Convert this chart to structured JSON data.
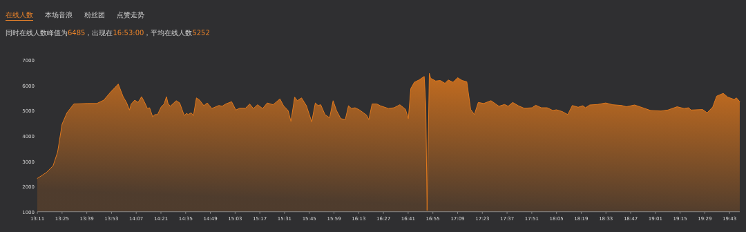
{
  "chart_data": {
    "type": "area",
    "annotations": [
      "在线人数",
      "本场音浪",
      "粉丝团",
      "点赞走势"
    ],
    "subtitle": "同时在线人数峰值为6485，出现在16:53:00，平均在线人数5252",
    "xlim": [
      13.183,
      19.8133
    ],
    "ylim": [
      1000,
      7000
    ],
    "yticks": [
      1000,
      2000,
      3000,
      4000,
      5000,
      6000,
      7000
    ],
    "xticks": [
      {
        "value": 13.1833,
        "label": "13:11"
      },
      {
        "value": 13.4167,
        "label": "13:25"
      },
      {
        "value": 13.65,
        "label": "13:39"
      },
      {
        "value": 13.8833,
        "label": "13:53"
      },
      {
        "value": 14.1167,
        "label": "14:07"
      },
      {
        "value": 14.35,
        "label": "14:21"
      },
      {
        "value": 14.5833,
        "label": "14:35"
      },
      {
        "value": 14.8167,
        "label": "14:49"
      },
      {
        "value": 15.05,
        "label": "15:03"
      },
      {
        "value": 15.2833,
        "label": "15:17"
      },
      {
        "value": 15.5167,
        "label": "15:31"
      },
      {
        "value": 15.75,
        "label": "15:45"
      },
      {
        "value": 15.9833,
        "label": "15:59"
      },
      {
        "value": 16.2167,
        "label": "16:13"
      },
      {
        "value": 16.45,
        "label": "16:27"
      },
      {
        "value": 16.6833,
        "label": "16:41"
      },
      {
        "value": 16.9167,
        "label": "16:55"
      },
      {
        "value": 17.15,
        "label": "17:09"
      },
      {
        "value": 17.3833,
        "label": "17:23"
      },
      {
        "value": 17.6167,
        "label": "17:37"
      },
      {
        "value": 17.85,
        "label": "17:51"
      },
      {
        "value": 18.0833,
        "label": "18:05"
      },
      {
        "value": 18.3167,
        "label": "18:19"
      },
      {
        "value": 18.55,
        "label": "18:33"
      },
      {
        "value": 18.7833,
        "label": "18:47"
      },
      {
        "value": 19.0167,
        "label": "19:01"
      },
      {
        "value": 19.25,
        "label": "19:15"
      },
      {
        "value": 19.4833,
        "label": "19:29"
      },
      {
        "value": 19.7167,
        "label": "19:43"
      }
    ],
    "x": [
      13.183,
      13.267,
      13.332,
      13.375,
      13.417,
      13.463,
      13.528,
      13.658,
      13.745,
      13.81,
      13.875,
      13.947,
      13.972,
      13.993,
      14.025,
      14.053,
      14.07,
      14.102,
      14.135,
      14.167,
      14.193,
      14.222,
      14.243,
      14.272,
      14.293,
      14.318,
      14.352,
      14.38,
      14.402,
      14.417,
      14.438,
      14.467,
      14.493,
      14.527,
      14.57,
      14.592,
      14.607,
      14.635,
      14.657,
      14.685,
      14.715,
      14.755,
      14.787,
      14.83,
      14.897,
      14.928,
      14.962,
      15.017,
      15.057,
      15.092,
      15.147,
      15.187,
      15.223,
      15.262,
      15.31,
      15.353,
      15.408,
      15.473,
      15.507,
      15.55,
      15.577,
      15.612,
      15.637,
      15.677,
      15.723,
      15.773,
      15.807,
      15.832,
      15.858,
      15.898,
      15.942,
      15.975,
      16.007,
      16.047,
      16.09,
      16.12,
      16.148,
      16.182,
      16.225,
      16.29,
      16.312,
      16.343,
      16.387,
      16.42,
      16.497,
      16.55,
      16.605,
      16.658,
      16.685,
      16.708,
      16.742,
      16.785,
      16.835,
      16.85,
      16.862,
      16.883,
      16.895,
      16.943,
      16.987,
      17.03,
      17.062,
      17.107,
      17.15,
      17.193,
      17.237,
      17.273,
      17.308,
      17.345,
      17.397,
      17.465,
      17.54,
      17.593,
      17.627,
      17.67,
      17.723,
      17.778,
      17.853,
      17.887,
      17.94,
      17.995,
      18.05,
      18.082,
      18.137,
      18.19,
      18.233,
      18.288,
      18.332,
      18.357,
      18.397,
      18.472,
      18.548,
      18.613,
      18.7,
      18.743,
      18.82,
      18.918,
      18.972,
      19.07,
      19.135,
      19.222,
      19.287,
      19.33,
      19.353,
      19.462,
      19.505,
      19.558,
      19.595,
      19.657,
      19.7,
      19.76,
      19.782,
      19.813
    ],
    "series": [
      {
        "color": "#e0781c",
        "values": [
          2320,
          2550,
          2820,
          3370,
          4470,
          4920,
          5270,
          5290,
          5290,
          5420,
          5740,
          6060,
          5790,
          5560,
          5330,
          5030,
          5270,
          5420,
          5330,
          5560,
          5360,
          5090,
          5120,
          4760,
          4850,
          4850,
          5150,
          5270,
          5560,
          5290,
          5180,
          5290,
          5400,
          5310,
          4810,
          4900,
          4850,
          4920,
          4810,
          5510,
          5420,
          5200,
          5310,
          5090,
          5210,
          5180,
          5270,
          5360,
          5030,
          5100,
          5100,
          5270,
          5090,
          5240,
          5090,
          5310,
          5240,
          5470,
          5200,
          5010,
          4580,
          5540,
          5400,
          5510,
          5200,
          4560,
          5310,
          5210,
          5240,
          4850,
          4720,
          5400,
          5010,
          4690,
          4650,
          5200,
          5090,
          5120,
          5030,
          4830,
          4650,
          5270,
          5270,
          5200,
          5090,
          5120,
          5240,
          5060,
          4690,
          5880,
          6130,
          6220,
          6360,
          5200,
          1050,
          6485,
          6290,
          6180,
          6200,
          6090,
          6220,
          6130,
          6310,
          6200,
          6150,
          5060,
          4850,
          5330,
          5290,
          5400,
          5180,
          5250,
          5180,
          5330,
          5200,
          5100,
          5120,
          5220,
          5120,
          5120,
          5010,
          5040,
          4970,
          4850,
          5210,
          5140,
          5200,
          5120,
          5230,
          5250,
          5310,
          5240,
          5210,
          5160,
          5230,
          5090,
          5010,
          4990,
          5030,
          5160,
          5090,
          5120,
          5030,
          5050,
          4920,
          5150,
          5580,
          5690,
          5540,
          5450,
          5510,
          5360
        ]
      }
    ]
  }
}
